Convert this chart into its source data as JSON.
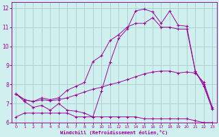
{
  "bg_color": "#d0f0f0",
  "line_color": "#990099",
  "grid_color": "#aacccc",
  "xlabel": "Windchill (Refroidissement éolien,°C)",
  "xlabel_color": "#990099",
  "xlim": [
    -0.5,
    23.5
  ],
  "ylim": [
    6,
    12.3
  ],
  "xticks": [
    0,
    1,
    2,
    3,
    4,
    5,
    6,
    7,
    8,
    9,
    10,
    11,
    12,
    13,
    14,
    15,
    16,
    17,
    18,
    19,
    20,
    21,
    22,
    23
  ],
  "yticks": [
    6,
    7,
    8,
    9,
    10,
    11,
    12
  ],
  "series1_x": [
    0,
    1,
    2,
    3,
    4,
    5,
    6,
    7,
    8,
    9,
    10,
    11,
    12,
    13,
    14,
    15,
    16,
    17,
    18,
    19,
    20,
    21,
    22,
    23
  ],
  "series1_y": [
    6.3,
    6.5,
    6.5,
    6.5,
    6.5,
    6.5,
    6.5,
    6.3,
    6.3,
    6.3,
    6.3,
    6.3,
    6.3,
    6.3,
    6.3,
    6.2,
    6.2,
    6.2,
    6.2,
    6.2,
    6.2,
    6.1,
    6.0,
    6.0
  ],
  "series2_x": [
    0,
    1,
    2,
    3,
    4,
    5,
    6,
    7,
    8,
    9,
    10,
    11,
    12,
    13,
    14,
    15,
    16,
    17,
    18,
    19,
    20,
    21,
    22,
    23
  ],
  "series2_y": [
    7.5,
    7.2,
    7.1,
    7.2,
    7.15,
    7.2,
    7.3,
    7.45,
    7.6,
    7.75,
    7.85,
    8.0,
    8.1,
    8.25,
    8.4,
    8.55,
    8.65,
    8.7,
    8.7,
    8.6,
    8.65,
    8.6,
    8.1,
    6.8
  ],
  "series3_x": [
    0,
    1,
    2,
    3,
    4,
    5,
    6,
    7,
    8,
    9,
    10,
    11,
    12,
    13,
    14,
    15,
    16,
    17,
    18,
    19,
    20,
    21,
    22,
    23
  ],
  "series3_y": [
    7.5,
    7.2,
    7.1,
    7.3,
    7.2,
    7.3,
    7.7,
    7.9,
    8.1,
    9.2,
    9.5,
    10.3,
    10.6,
    11.0,
    11.2,
    11.2,
    11.5,
    11.0,
    11.0,
    10.9,
    10.9,
    8.7,
    8.0,
    6.7
  ],
  "series4_x": [
    0,
    1,
    2,
    3,
    4,
    5,
    6,
    7,
    8,
    9,
    10,
    11,
    12,
    13,
    14,
    15,
    16,
    17,
    18,
    19,
    20,
    21,
    22,
    23
  ],
  "series4_y": [
    7.5,
    7.1,
    6.8,
    6.9,
    6.65,
    7.0,
    6.65,
    6.6,
    6.5,
    6.3,
    7.65,
    9.15,
    10.4,
    10.9,
    11.85,
    11.95,
    11.8,
    11.2,
    11.85,
    11.1,
    11.05,
    8.7,
    7.9,
    6.7
  ]
}
